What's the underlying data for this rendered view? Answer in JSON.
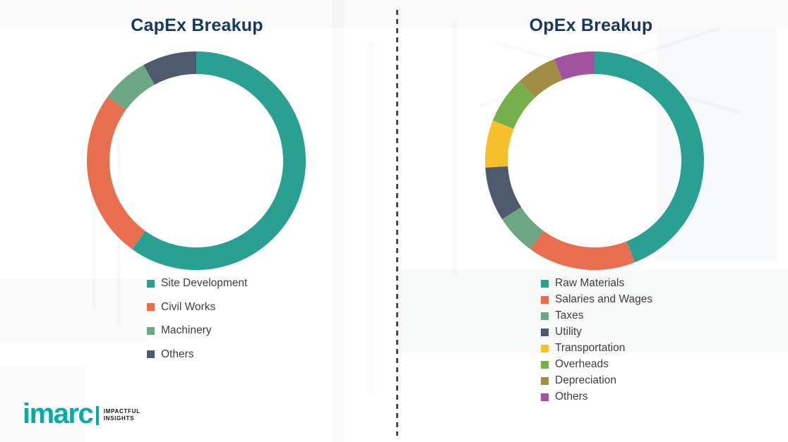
{
  "chart_data": [
    {
      "type": "pie",
      "donut": true,
      "title": "CapEx Breakup",
      "labels": [
        "Site Development",
        "Civil Works",
        "Machinery",
        "Others"
      ],
      "values": [
        60,
        25,
        7,
        8
      ],
      "colors": [
        "#2AA092",
        "#E76F4F",
        "#6CA682",
        "#4E5A6E"
      ],
      "legend_position": "bottom-left",
      "start_angle_deg": 0,
      "direction": "clockwise"
    },
    {
      "type": "pie",
      "donut": true,
      "title": "OpEx Breakup",
      "labels": [
        "Raw Materials",
        "Salaries and Wages",
        "Taxes",
        "Utility",
        "Transportation",
        "Overheads",
        "Depreciation",
        "Others"
      ],
      "values": [
        44,
        16,
        6,
        8,
        7,
        7,
        6,
        6
      ],
      "colors": [
        "#2AA092",
        "#E76F4F",
        "#6CA682",
        "#4E5A6E",
        "#F7BF2B",
        "#77B04B",
        "#A08C42",
        "#A2539F"
      ],
      "legend_position": "bottom-left",
      "start_angle_deg": 0,
      "direction": "clockwise"
    }
  ],
  "logo": {
    "brand": "imarc",
    "tagline_line1": "IMPACTFUL",
    "tagline_line2": "INSIGHTS"
  },
  "theme": {
    "title_color": "#16395F",
    "legend_text_color": "#3D3D3D",
    "brand_teal": "#00AEA4",
    "divider_color": "#4A4A4A"
  }
}
